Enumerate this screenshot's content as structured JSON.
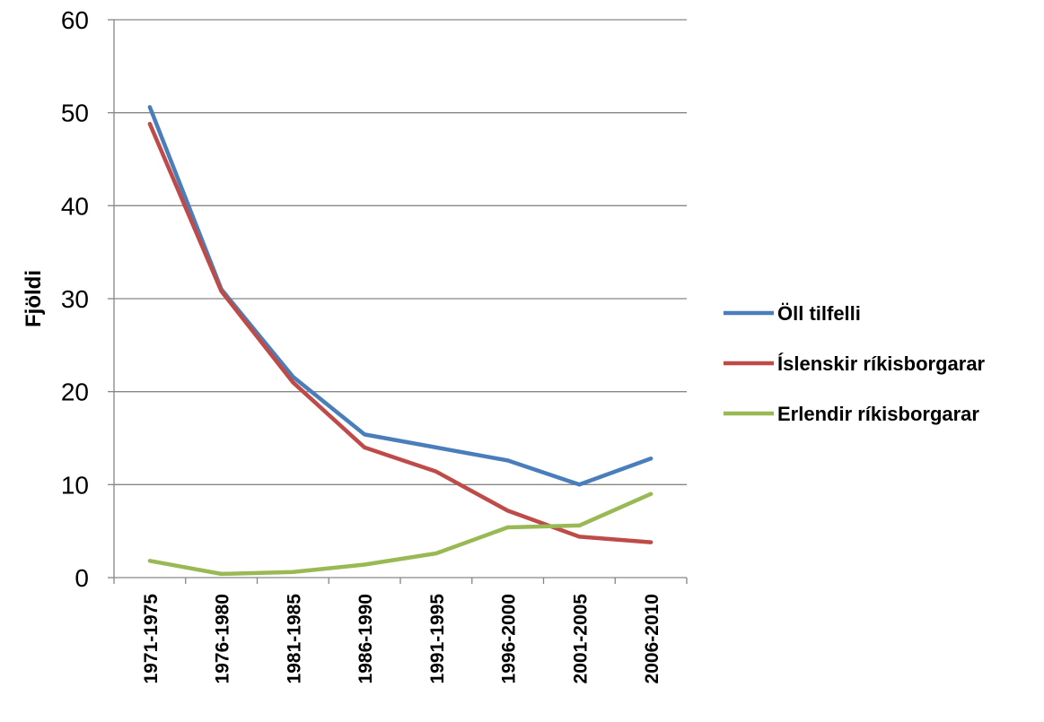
{
  "chart_data": {
    "type": "line",
    "title": "",
    "xlabel": "",
    "ylabel": "Fjöldi",
    "ylim": [
      0,
      60
    ],
    "yticks": [
      0,
      10,
      20,
      30,
      40,
      50,
      60
    ],
    "grid": true,
    "legend_position": "right",
    "categories": [
      "1971-1975",
      "1976-1980",
      "1981-1985",
      "1986-1990",
      "1991-1995",
      "1996-2000",
      "2001-2005",
      "2006-2010"
    ],
    "series": [
      {
        "name": "Öll tilfelli",
        "color": "#4a7ebb",
        "values": [
          50.6,
          31.0,
          21.6,
          15.4,
          14.0,
          12.6,
          10.0,
          12.8
        ]
      },
      {
        "name": "Íslenskir ríkisborgarar",
        "color": "#be4b48",
        "values": [
          48.8,
          30.8,
          21.0,
          14.0,
          11.4,
          7.2,
          4.4,
          3.8
        ]
      },
      {
        "name": "Erlendir ríkisborgarar",
        "color": "#98b954",
        "values": [
          1.8,
          0.4,
          0.6,
          1.4,
          2.6,
          5.4,
          5.6,
          9.0
        ]
      }
    ]
  }
}
